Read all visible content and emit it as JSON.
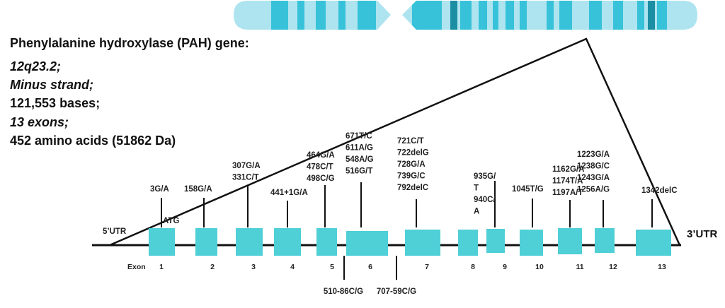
{
  "info": [
    "Phenylalanine hydroxylase (PAH) gene:",
    "12q23.2;",
    "Minus strand;",
    "121,553 bases;",
    "13 exons;",
    "452 amino acids (51862 Da)"
  ],
  "labels": {
    "utr5": "5’UTR",
    "atg": "ATG",
    "utr3": "3’UTR",
    "exon": "Exon"
  },
  "exons": [
    "1",
    "2",
    "3",
    "4",
    "5",
    "6",
    "7",
    "8",
    "9",
    "10",
    "11",
    "12",
    "13"
  ],
  "mutations_above": [
    {
      "lines": [
        "3G/A"
      ]
    },
    {
      "lines": [
        "158G/A"
      ]
    },
    {
      "lines": [
        "307G/A",
        "331C/T"
      ]
    },
    {
      "lines": [
        "441+1G/A"
      ]
    },
    {
      "lines": [
        "464G/A",
        "478C/T",
        "498C/G"
      ]
    },
    {
      "lines": [
        "671T/C",
        "611A/G",
        "548A/G",
        "516G/T"
      ]
    },
    {
      "lines": [
        "721C/T",
        "722delG",
        "728G/A",
        "739G/C",
        "792delC"
      ]
    },
    {
      "lines": [
        "935G/",
        "T",
        "940C/",
        "A"
      ]
    },
    {
      "lines": [
        "1045T/G"
      ]
    },
    {
      "lines": [
        "1162G/A",
        "1174T/A",
        "1197A/T"
      ]
    },
    {
      "lines": [
        "1223G/A",
        "1238G/C",
        "1243G/A",
        "1256A/G"
      ]
    },
    {
      "lines": [
        "1342delC"
      ]
    }
  ],
  "mutations_below": [
    "510-86C/G",
    "707-59C/G"
  ]
}
